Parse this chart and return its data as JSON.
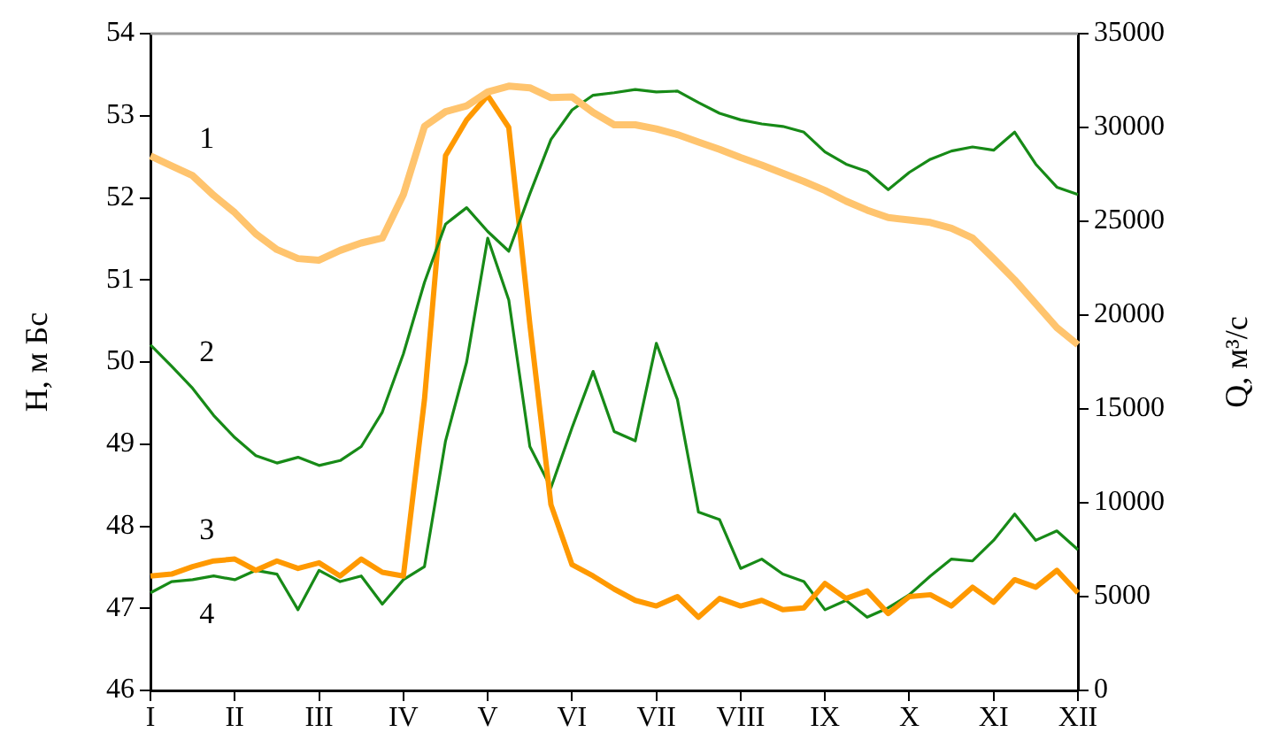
{
  "chart_data": {
    "type": "line",
    "ylabel": "H, м Бс",
    "y2label": "Q, м³/с",
    "categories": [
      "I",
      null,
      null,
      null,
      "II",
      null,
      null,
      null,
      "III",
      null,
      null,
      null,
      "IV",
      null,
      null,
      null,
      "V",
      null,
      null,
      null,
      "VI",
      null,
      null,
      null,
      "VII",
      null,
      null,
      null,
      "VIII",
      null,
      null,
      null,
      "IX",
      null,
      null,
      null,
      "X",
      null,
      null,
      null,
      "XI",
      null,
      null,
      null,
      "XII"
    ],
    "ylim": [
      46,
      54
    ],
    "yticks": [
      46,
      47,
      48,
      49,
      50,
      51,
      52,
      53,
      54
    ],
    "y2lim": [
      0,
      35000
    ],
    "y2ticks": [
      0,
      5000,
      10000,
      15000,
      20000,
      25000,
      30000,
      35000
    ],
    "grid": false,
    "legend": false,
    "marker": "none",
    "line_style": "solid",
    "series": [
      {
        "name": "1",
        "color": "#ffc46e",
        "values": [
          52.51,
          52.39,
          52.27,
          52.03,
          51.82,
          51.56,
          51.37,
          51.26,
          51.24,
          51.36,
          51.45,
          51.51,
          52.04,
          52.87,
          53.05,
          53.12,
          53.29,
          53.36,
          53.34,
          53.22,
          53.23,
          53.04,
          52.89,
          52.89,
          52.84,
          52.77,
          52.68,
          52.59,
          52.49,
          52.4,
          52.3,
          52.2,
          52.09,
          51.96,
          51.85,
          51.76,
          51.73,
          51.7,
          51.63,
          51.51,
          51.26,
          51.0,
          50.71,
          50.42,
          50.21
        ]
      },
      {
        "name": "2",
        "color": "#178a17",
        "values": [
          50.21,
          49.95,
          49.68,
          49.35,
          49.08,
          48.86,
          48.77,
          48.84,
          48.74,
          48.8,
          48.97,
          49.39,
          50.1,
          50.97,
          51.68,
          51.88,
          51.59,
          51.35,
          52.05,
          52.71,
          53.07,
          53.25,
          53.28,
          53.32,
          53.29,
          53.3,
          53.16,
          53.03,
          52.95,
          52.9,
          52.87,
          52.8,
          52.56,
          52.41,
          52.32,
          52.1,
          52.31,
          52.47,
          52.57,
          52.62,
          52.58,
          52.8,
          52.41,
          52.13,
          52.04
        ]
      },
      {
        "name": "3",
        "color": "#ff9900",
        "axis": "y2",
        "values": [
          6100,
          6200,
          6600,
          6900,
          7000,
          6400,
          6900,
          6500,
          6800,
          6100,
          7000,
          6300,
          6100,
          15500,
          28500,
          30400,
          31700,
          30000,
          19500,
          9900,
          6700,
          6100,
          5400,
          4800,
          4500,
          5000,
          3900,
          4900,
          4500,
          4800,
          4300,
          4400,
          5700,
          4900,
          5300,
          4100,
          5000,
          5100,
          4500,
          5500,
          4700,
          5900,
          5500,
          6400,
          5200
        ]
      },
      {
        "name": "4",
        "color": "#178a17",
        "axis": "y2",
        "values": [
          5200,
          5800,
          5900,
          6100,
          5900,
          6400,
          6200,
          4300,
          6400,
          5800,
          6100,
          4600,
          5900,
          6600,
          13300,
          17500,
          24100,
          20800,
          13000,
          10800,
          14000,
          17000,
          13800,
          13300,
          18500,
          15500,
          9500,
          9100,
          6500,
          7000,
          6200,
          5800,
          4300,
          4800,
          3900,
          4400,
          5100,
          6100,
          7000,
          6900,
          8000,
          9400,
          8000,
          8500,
          7500
        ]
      }
    ]
  }
}
